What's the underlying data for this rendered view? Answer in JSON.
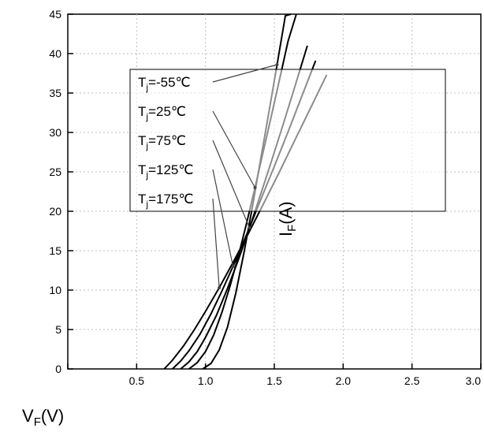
{
  "chart_data": {
    "type": "line",
    "title": "",
    "xlabel": "V",
    "xlabel_sub": "F",
    "xlabel_unit": "(V)",
    "ylabel": "I",
    "ylabel_sub": "F",
    "ylabel_unit": "(A)",
    "xlim": [
      0,
      3
    ],
    "ylim": [
      0,
      45
    ],
    "y_ticks": [
      0,
      5,
      10,
      15,
      20,
      25,
      30,
      35,
      40,
      45
    ],
    "x_ticks": [
      0,
      0.5,
      1,
      1.5,
      2,
      2.5,
      3
    ],
    "x_tick_labels_visible": [
      "0.5",
      "1.0",
      "1.5",
      "2.0",
      "2.5",
      "3.0"
    ],
    "grid": true,
    "series": [
      {
        "name": "T",
        "sub": "j",
        "suffix": "=-55℃",
        "x": [
          0.98,
          1.04,
          1.1,
          1.16,
          1.22,
          1.28,
          1.34,
          1.4,
          1.46,
          1.52,
          1.58,
          1.62
        ],
        "y": [
          0,
          0.7,
          2.4,
          5.3,
          9.6,
          14.8,
          20.5,
          26.5,
          32.5,
          38.6,
          44.8,
          45
        ]
      },
      {
        "name": "T",
        "sub": "j",
        "suffix": "=25℃",
        "x": [
          0.88,
          0.94,
          1.0,
          1.06,
          1.12,
          1.18,
          1.24,
          1.3,
          1.36,
          1.42,
          1.48,
          1.54,
          1.6,
          1.66
        ],
        "y": [
          0,
          0.8,
          2.2,
          4.3,
          7.2,
          10.6,
          14.4,
          18.6,
          23.0,
          27.6,
          32.2,
          36.9,
          41.6,
          45
        ]
      },
      {
        "name": "T",
        "sub": "j",
        "suffix": "=75℃",
        "x": [
          0.82,
          0.88,
          0.94,
          1.0,
          1.08,
          1.16,
          1.24,
          1.32,
          1.4,
          1.48,
          1.56,
          1.64,
          1.74
        ],
        "y": [
          0,
          0.9,
          2.2,
          4.0,
          6.8,
          10.2,
          13.9,
          17.9,
          22.1,
          26.4,
          30.8,
          35.3,
          41.0
        ]
      },
      {
        "name": "T",
        "sub": "j",
        "suffix": "=125℃",
        "x": [
          0.76,
          0.82,
          0.88,
          0.96,
          1.04,
          1.12,
          1.2,
          1.3,
          1.4,
          1.5,
          1.6,
          1.7,
          1.8
        ],
        "y": [
          0,
          1.0,
          2.3,
          4.4,
          7.0,
          9.9,
          13.0,
          17.1,
          21.4,
          25.7,
          30.1,
          34.6,
          39.1
        ]
      },
      {
        "name": "T",
        "sub": "j",
        "suffix": "=175℃",
        "x": [
          0.7,
          0.76,
          0.84,
          0.92,
          1.0,
          1.1,
          1.2,
          1.3,
          1.42,
          1.54,
          1.66,
          1.78,
          1.88
        ],
        "y": [
          0,
          1.1,
          2.9,
          5.0,
          7.3,
          10.3,
          13.5,
          16.8,
          20.9,
          25.1,
          29.4,
          33.7,
          37.3
        ]
      }
    ]
  }
}
